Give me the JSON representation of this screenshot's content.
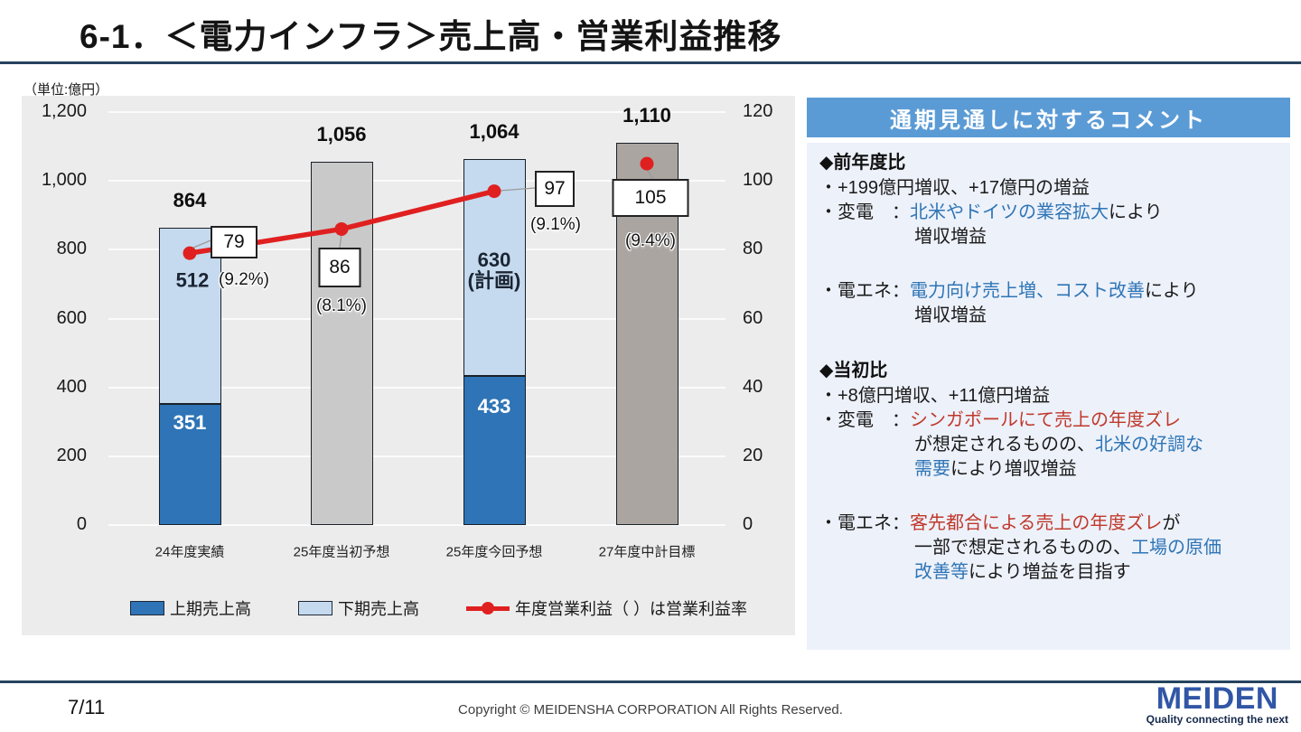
{
  "header": {
    "title": "6-1．＜電力インフラ＞売上高・営業利益推移"
  },
  "chart_data": {
    "type": "bar",
    "unit": "（単位:億円）",
    "categories": [
      "24年度実績",
      "25年度当初予想",
      "25年度今回予想",
      "27年度中計目標"
    ],
    "left_axis": {
      "min": 0,
      "max": 1200,
      "tick_step": 200,
      "tick_labels": [
        "0",
        "200",
        "400",
        "600",
        "800",
        "1,000",
        "1,200"
      ]
    },
    "right_axis": {
      "min": 0,
      "max": 120,
      "tick_step": 20,
      "tick_labels": [
        "0",
        "20",
        "40",
        "60",
        "80",
        "100",
        "120"
      ]
    },
    "bars": [
      {
        "total": 864,
        "total_label": "864",
        "lower": 351,
        "lower_label": "351",
        "upper_label": "512",
        "style": "stacked"
      },
      {
        "total": 1056,
        "total_label": "1,056",
        "style": "gray"
      },
      {
        "total": 1064,
        "total_label": "1,064",
        "lower": 433,
        "lower_label": "433",
        "upper_label": "630",
        "upper_sublabel": "(計画)",
        "style": "stacked"
      },
      {
        "total": 1110,
        "total_label": "1,110",
        "style": "gray-dark"
      }
    ],
    "line_series": {
      "name": "年度営業利益",
      "values": [
        79,
        86,
        97,
        105
      ],
      "value_labels": [
        "79",
        "86",
        "97",
        "105"
      ],
      "rate_labels": [
        "(9.2%)",
        "(8.1%)",
        "(9.1%)",
        "(9.4%)"
      ],
      "connected_points": 3
    },
    "colors": {
      "upper_bar": "#c5daee",
      "lower_bar": "#2e74b6",
      "gray_bar": "#c9c9c9",
      "gray_dark_bar": "#aaa5a1",
      "line": "#e02020",
      "plot_bg": "#ececec",
      "gridline": "#fbfbfb"
    },
    "legend": [
      {
        "label": "上期売上高",
        "type": "swatch",
        "color": "#2e74b6"
      },
      {
        "label": "下期売上高",
        "type": "swatch",
        "color": "#c5daee"
      },
      {
        "label": "年度営業利益（ ）は営業利益率",
        "type": "line",
        "color": "#e02020"
      }
    ]
  },
  "comments": {
    "header": "通期見通しに対するコメント",
    "colors": {
      "k": "#1a1a1a",
      "b": "#2e75b6",
      "r": "#c0392b"
    },
    "blocks": [
      {
        "type": "heading",
        "text": "◆前年度比"
      },
      {
        "type": "line",
        "indent": 0,
        "segments": [
          [
            "・+199億円増収、+17億円の増益",
            "k"
          ]
        ]
      },
      {
        "type": "line",
        "indent": 0,
        "segments": [
          [
            "・変電　：",
            "k"
          ],
          [
            "北米やドイツの業容拡大",
            "b"
          ],
          [
            "により",
            "k"
          ]
        ]
      },
      {
        "type": "line",
        "indent": 1,
        "segments": [
          [
            "増収増益",
            "k"
          ]
        ]
      },
      {
        "type": "gap"
      },
      {
        "type": "line",
        "indent": 0,
        "segments": [
          [
            "・電エネ：",
            "k"
          ],
          [
            "電力向け売上増、コスト改善",
            "b"
          ],
          [
            "により",
            "k"
          ]
        ]
      },
      {
        "type": "line",
        "indent": 1,
        "segments": [
          [
            "増収増益",
            "k"
          ]
        ]
      },
      {
        "type": "gap"
      },
      {
        "type": "heading",
        "text": "◆当初比"
      },
      {
        "type": "line",
        "indent": 0,
        "segments": [
          [
            "・+8億円増収、+11億円増益",
            "k"
          ]
        ]
      },
      {
        "type": "line",
        "indent": 0,
        "segments": [
          [
            "・変電　：",
            "k"
          ],
          [
            "シンガポールにて売上の年度ズレ",
            "r"
          ]
        ]
      },
      {
        "type": "line",
        "indent": 1,
        "segments": [
          [
            "が想定されるものの、",
            "k"
          ],
          [
            "北米の好調な",
            "b"
          ]
        ]
      },
      {
        "type": "line",
        "indent": 1,
        "segments": [
          [
            "需要",
            "b"
          ],
          [
            "により増収増益",
            "k"
          ]
        ]
      },
      {
        "type": "gap"
      },
      {
        "type": "line",
        "indent": 0,
        "segments": [
          [
            "・電エネ：",
            "k"
          ],
          [
            "客先都合による売上の年度ズレ",
            "r"
          ],
          [
            "が",
            "k"
          ]
        ]
      },
      {
        "type": "line",
        "indent": 1,
        "segments": [
          [
            "一部で想定されるものの、",
            "k"
          ],
          [
            "工場の原価",
            "b"
          ]
        ]
      },
      {
        "type": "line",
        "indent": 1,
        "segments": [
          [
            "改善等",
            "b"
          ],
          [
            "により増益を目指す",
            "k"
          ]
        ]
      }
    ]
  },
  "footer": {
    "page": "7/11",
    "copyright": "Copyright © MEIDENSHA CORPORATION All Rights Reserved.",
    "logo": "MEIDEN",
    "tagline": "Quality connecting the next"
  }
}
